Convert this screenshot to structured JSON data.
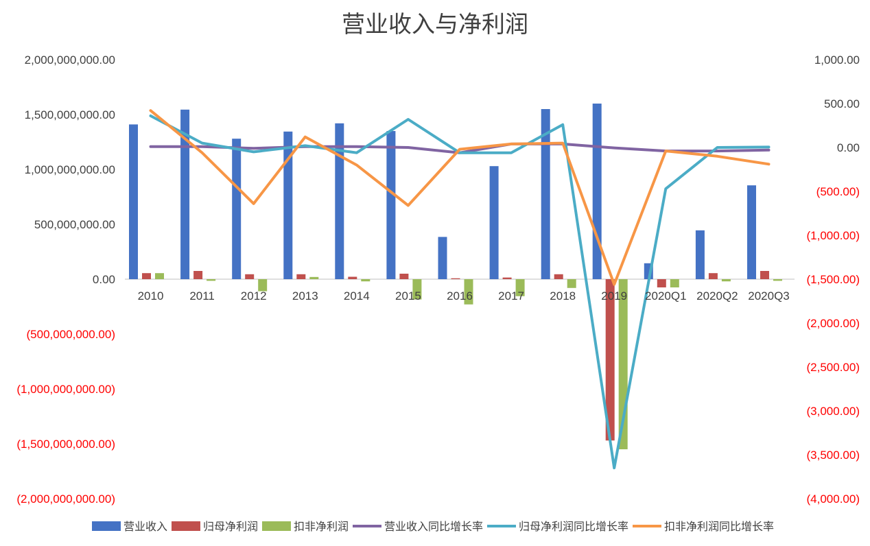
{
  "chart_data": {
    "type": "bar",
    "title": "营业收入与净利润",
    "categories": [
      "2010",
      "2011",
      "2012",
      "2013",
      "2014",
      "2015",
      "2016",
      "2017",
      "2018",
      "2019",
      "2020Q1",
      "2020Q2",
      "2020Q3"
    ],
    "left_axis": {
      "ylim": [
        -2000000000,
        2000000000
      ],
      "ticks": [
        {
          "value": 2000000000,
          "label": "2,000,000,000.00"
        },
        {
          "value": 1500000000,
          "label": "1,500,000,000.00"
        },
        {
          "value": 1000000000,
          "label": "1,000,000,000.00"
        },
        {
          "value": 500000000,
          "label": "500,000,000.00"
        },
        {
          "value": 0,
          "label": "0.00"
        },
        {
          "value": -500000000,
          "label": "(500,000,000.00)"
        },
        {
          "value": -1000000000,
          "label": "(1,000,000,000.00)"
        },
        {
          "value": -1500000000,
          "label": "(1,500,000,000.00)"
        },
        {
          "value": -2000000000,
          "label": "(2,000,000,000.00)"
        }
      ]
    },
    "right_axis": {
      "ylim": [
        -4000,
        1000
      ],
      "ticks": [
        {
          "value": 1000,
          "label": "1,000.00"
        },
        {
          "value": 500,
          "label": "500.00"
        },
        {
          "value": 0,
          "label": "0.00"
        },
        {
          "value": -500,
          "label": "(500.00)"
        },
        {
          "value": -1000,
          "label": "(1,000.00)"
        },
        {
          "value": -1500,
          "label": "(1,500.00)"
        },
        {
          "value": -2000,
          "label": "(2,000.00)"
        },
        {
          "value": -2500,
          "label": "(2,500.00)"
        },
        {
          "value": -3000,
          "label": "(3,000.00)"
        },
        {
          "value": -3500,
          "label": "(3,500.00)"
        },
        {
          "value": -4000,
          "label": "(4,000.00)"
        }
      ]
    },
    "bar_series": [
      {
        "name": "营业收入",
        "color": "#4472C4",
        "values": [
          1410000000,
          1545000000,
          1280000000,
          1345000000,
          1420000000,
          1350000000,
          385000000,
          1030000000,
          1550000000,
          1600000000,
          145000000,
          445000000,
          855000000
        ]
      },
      {
        "name": "归母净利润",
        "color": "#C0504D",
        "values": [
          55000000,
          75000000,
          45000000,
          45000000,
          22000000,
          50000000,
          8000000,
          15000000,
          45000000,
          -1470000000,
          -75000000,
          55000000,
          75000000
        ]
      },
      {
        "name": "扣非净利润",
        "color": "#9BBB59",
        "values": [
          55000000,
          -15000000,
          -110000000,
          20000000,
          -20000000,
          -185000000,
          -230000000,
          -155000000,
          -80000000,
          -1550000000,
          -75000000,
          -20000000,
          -15000000
        ]
      }
    ],
    "line_series": [
      {
        "name": "营业收入同比增长率",
        "color": "#8064A2",
        "values": [
          10,
          10,
          -10,
          10,
          10,
          0,
          -60,
          40,
          40,
          -5,
          -40,
          -40,
          -30
        ]
      },
      {
        "name": "归母净利润同比增长率",
        "color": "#4BACC6",
        "values": [
          360,
          50,
          -50,
          20,
          -60,
          320,
          -60,
          -60,
          260,
          -3650,
          -470,
          0,
          5
        ]
      },
      {
        "name": "扣非净利润同比增长率",
        "color": "#F79646",
        "values": [
          420,
          -60,
          -640,
          120,
          -200,
          -660,
          -20,
          40,
          50,
          -1560,
          -40,
          -100,
          -190
        ]
      }
    ],
    "legend": {
      "position": "bottom"
    }
  }
}
